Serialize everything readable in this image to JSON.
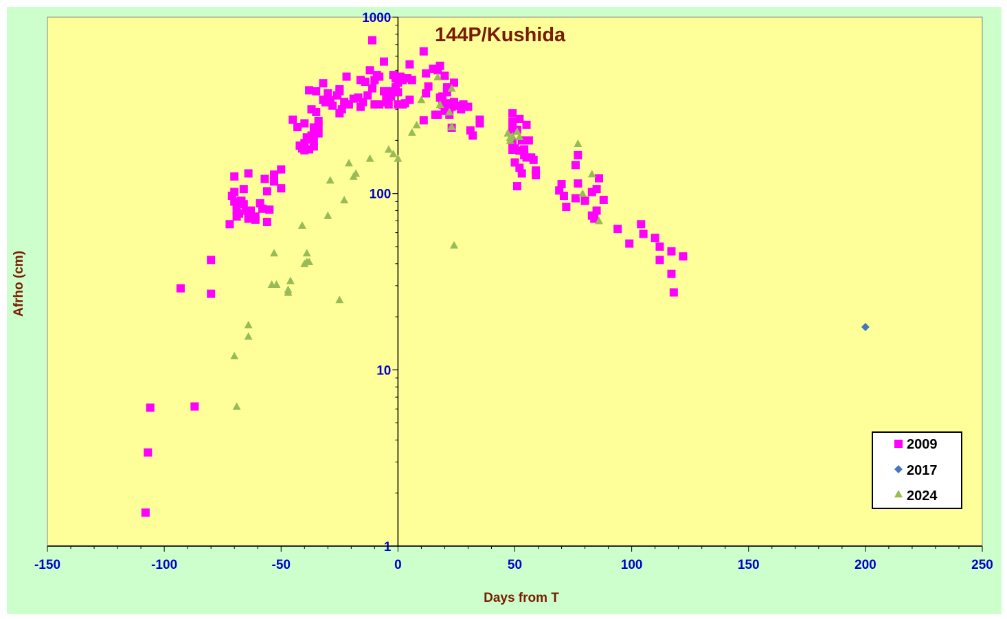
{
  "chart_data": {
    "type": "scatter",
    "title": "144P/Kushida",
    "xlabel": "Days from  T",
    "ylabel": "Afrho (cm)",
    "xlim": [
      -150,
      250
    ],
    "ylim": [
      1,
      1000
    ],
    "yscale": "log",
    "x_ticks": [
      -150,
      -100,
      -50,
      0,
      50,
      100,
      150,
      200,
      250
    ],
    "x_tick_labels": [
      "-150",
      "-100",
      "-50",
      "0",
      "50",
      "100",
      "150",
      "200",
      "250"
    ],
    "y_ticks": [
      1,
      10,
      100,
      1000
    ],
    "y_tick_labels": [
      "1",
      "10",
      "100",
      "1000"
    ],
    "grid": false,
    "legend": "bottom-right",
    "colors": {
      "outer_background": "#ccffcc",
      "plot_background": "#ffff99",
      "series_2009": "#ff00ff",
      "series_2017": "#4477bb",
      "series_2024": "#99bb55"
    },
    "series": [
      {
        "name": "2009",
        "marker": "square",
        "points": [
          [
            -108,
            1.55
          ],
          [
            -107,
            3.4
          ],
          [
            -106,
            6.1
          ],
          [
            -93,
            29
          ],
          [
            -87,
            6.2
          ],
          [
            -80,
            42
          ],
          [
            -80,
            27
          ],
          [
            -72,
            67
          ],
          [
            -71,
            97
          ],
          [
            -70,
            125
          ],
          [
            -70,
            102
          ],
          [
            -70,
            90
          ],
          [
            -69,
            80
          ],
          [
            -69,
            85
          ],
          [
            -69,
            74
          ],
          [
            -68,
            77
          ],
          [
            -67,
            91
          ],
          [
            -66,
            106
          ],
          [
            -66,
            87
          ],
          [
            -65,
            80
          ],
          [
            -64,
            72
          ],
          [
            -64,
            130
          ],
          [
            -63,
            80
          ],
          [
            -61,
            74
          ],
          [
            -61,
            71
          ],
          [
            -59,
            88
          ],
          [
            -58,
            82
          ],
          [
            -57,
            121
          ],
          [
            -56,
            103
          ],
          [
            -56,
            69
          ],
          [
            -55,
            81
          ],
          [
            -53,
            128
          ],
          [
            -53,
            117
          ],
          [
            -50,
            137
          ],
          [
            -50,
            107
          ],
          [
            -45,
            262
          ],
          [
            -43,
            238
          ],
          [
            -42,
            187
          ],
          [
            -41,
            180
          ],
          [
            -40,
            193
          ],
          [
            -40,
            176
          ],
          [
            -40,
            250
          ],
          [
            -39,
            208
          ],
          [
            -38,
            385
          ],
          [
            -38,
            203
          ],
          [
            -38,
            178
          ],
          [
            -37,
            300
          ],
          [
            -37,
            213
          ],
          [
            -36,
            185
          ],
          [
            -36,
            197
          ],
          [
            -36,
            237
          ],
          [
            -35,
            380
          ],
          [
            -35,
            290
          ],
          [
            -34,
            258
          ],
          [
            -34,
            219
          ],
          [
            -34,
            242
          ],
          [
            -32,
            340
          ],
          [
            -32,
            422
          ],
          [
            -31,
            329
          ],
          [
            -30,
            370
          ],
          [
            -29,
            338
          ],
          [
            -28,
            315
          ],
          [
            -26,
            360
          ],
          [
            -25,
            390
          ],
          [
            -25,
            285
          ],
          [
            -25,
            380
          ],
          [
            -24,
            300
          ],
          [
            -23,
            330
          ],
          [
            -22,
            460
          ],
          [
            -21,
            320
          ],
          [
            -19,
            345
          ],
          [
            -17,
            350
          ],
          [
            -16,
            310
          ],
          [
            -16,
            440
          ],
          [
            -15,
            330
          ],
          [
            -14,
            430
          ],
          [
            -13,
            360
          ],
          [
            -12,
            500
          ],
          [
            -11,
            395
          ],
          [
            -11,
            740
          ],
          [
            -10,
            320
          ],
          [
            -10,
            440
          ],
          [
            -9,
            470
          ],
          [
            -8,
            320
          ],
          [
            -8,
            460
          ],
          [
            -6,
            380
          ],
          [
            -6,
            560
          ],
          [
            -5,
            345
          ],
          [
            -5,
            330
          ],
          [
            -4,
            320
          ],
          [
            -3,
            380
          ],
          [
            -3,
            355
          ],
          [
            -2,
            470
          ],
          [
            -1,
            400
          ],
          [
            -1,
            450
          ],
          [
            0,
            375
          ],
          [
            0,
            425
          ],
          [
            0,
            320
          ],
          [
            1,
            460
          ],
          [
            2,
            320
          ],
          [
            2,
            440
          ],
          [
            3,
            325
          ],
          [
            4,
            450
          ],
          [
            5,
            340
          ],
          [
            5,
            540
          ],
          [
            6,
            440
          ],
          [
            11,
            640
          ],
          [
            11,
            260
          ],
          [
            12,
            370
          ],
          [
            12,
            480
          ],
          [
            13,
            405
          ],
          [
            15,
            510
          ],
          [
            16,
            280
          ],
          [
            17,
            280
          ],
          [
            17,
            500
          ],
          [
            18,
            350
          ],
          [
            18,
            530
          ],
          [
            19,
            320
          ],
          [
            19,
            355
          ],
          [
            20,
            295
          ],
          [
            20,
            465
          ],
          [
            21,
            400
          ],
          [
            21,
            375
          ],
          [
            21,
            295
          ],
          [
            22,
            325
          ],
          [
            22,
            280
          ],
          [
            23,
            236
          ],
          [
            23,
            310
          ],
          [
            24,
            425
          ],
          [
            24,
            330
          ],
          [
            26,
            315
          ],
          [
            27,
            300
          ],
          [
            28,
            320
          ],
          [
            30,
            310
          ],
          [
            31,
            228
          ],
          [
            32,
            213
          ],
          [
            35,
            250
          ],
          [
            35,
            262
          ],
          [
            49,
            285
          ],
          [
            49,
            255
          ],
          [
            49,
            230
          ],
          [
            49,
            193
          ],
          [
            49,
            177
          ],
          [
            50,
            180
          ],
          [
            50,
            150
          ],
          [
            51,
            110
          ],
          [
            51,
            230
          ],
          [
            52,
            265
          ],
          [
            52,
            175
          ],
          [
            52,
            140
          ],
          [
            53,
            130
          ],
          [
            53,
            200
          ],
          [
            54,
            178
          ],
          [
            54,
            165
          ],
          [
            55,
            245
          ],
          [
            55,
            160
          ],
          [
            56,
            200
          ],
          [
            57,
            160
          ],
          [
            58,
            155
          ],
          [
            59,
            135
          ],
          [
            59,
            127
          ],
          [
            69,
            104
          ],
          [
            70,
            113
          ],
          [
            71,
            97
          ],
          [
            72,
            84
          ],
          [
            76,
            145
          ],
          [
            76,
            94
          ],
          [
            77,
            114
          ],
          [
            77,
            165
          ],
          [
            80,
            91
          ],
          [
            83,
            75
          ],
          [
            83,
            102
          ],
          [
            84,
            72
          ],
          [
            85,
            80
          ],
          [
            85,
            106
          ],
          [
            86,
            122
          ],
          [
            88,
            92
          ],
          [
            94,
            63
          ],
          [
            99,
            52
          ],
          [
            104,
            67
          ],
          [
            105,
            59
          ],
          [
            110,
            56
          ],
          [
            112,
            50
          ],
          [
            112,
            42
          ],
          [
            117,
            47
          ],
          [
            117,
            35
          ],
          [
            118,
            27.5
          ],
          [
            122,
            44
          ]
        ]
      },
      {
        "name": "2017",
        "marker": "diamond",
        "points": [
          [
            200,
            17.5
          ]
        ]
      },
      {
        "name": "2024",
        "marker": "triangle",
        "points": [
          [
            -70,
            12
          ],
          [
            -69,
            6.2
          ],
          [
            -64,
            18
          ],
          [
            -64,
            15.5
          ],
          [
            -54,
            30.5
          ],
          [
            -53,
            46
          ],
          [
            -52,
            30.5
          ],
          [
            -47,
            27.5
          ],
          [
            -47,
            28.5
          ],
          [
            -46,
            32
          ],
          [
            -41,
            66
          ],
          [
            -40,
            40
          ],
          [
            -39,
            41
          ],
          [
            -39,
            46
          ],
          [
            -38,
            41
          ],
          [
            -30,
            75
          ],
          [
            -29,
            119
          ],
          [
            -25,
            25
          ],
          [
            -23,
            92
          ],
          [
            -21,
            149
          ],
          [
            -19,
            125
          ],
          [
            -18,
            130
          ],
          [
            -12,
            158
          ],
          [
            -4,
            178
          ],
          [
            -2,
            168
          ],
          [
            0,
            158
          ],
          [
            6,
            222
          ],
          [
            8,
            245
          ],
          [
            10,
            340
          ],
          [
            17,
            458
          ],
          [
            18,
            320
          ],
          [
            22,
            290
          ],
          [
            23,
            240
          ],
          [
            23,
            395
          ],
          [
            24,
            51
          ],
          [
            47,
            220
          ],
          [
            48,
            208
          ],
          [
            48,
            200
          ],
          [
            49,
            212
          ],
          [
            51,
            225
          ],
          [
            52,
            210
          ],
          [
            77,
            192
          ],
          [
            79,
            100
          ],
          [
            83,
            129
          ],
          [
            86,
            70
          ]
        ]
      }
    ]
  }
}
